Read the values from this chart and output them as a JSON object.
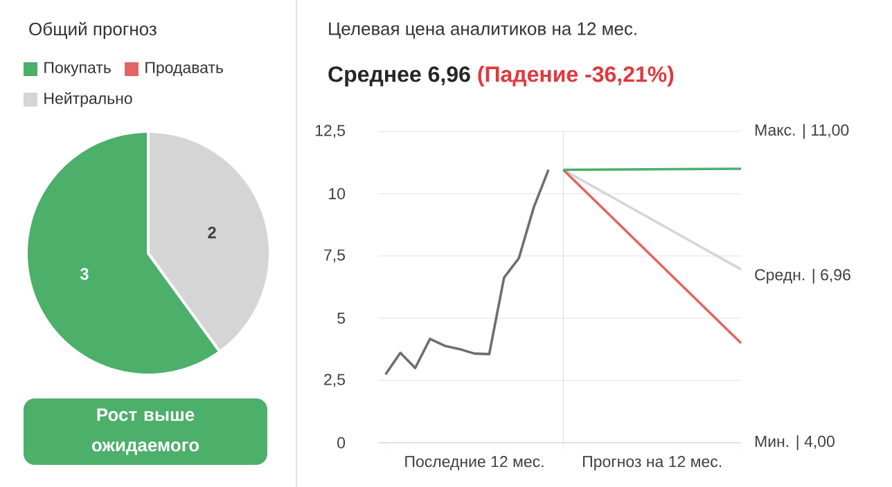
{
  "chart_data": [
    {
      "type": "pie",
      "title": "Общий прогноз",
      "categories": [
        "Покупать",
        "Продавать",
        "Нейтрально"
      ],
      "values": [
        3,
        0,
        2
      ],
      "colors": [
        "#4caf6a",
        "#e06666",
        "#d5d5d5"
      ],
      "value_labels": [
        "3",
        null,
        "2"
      ],
      "legend": "top",
      "annotations": [
        "Рост выше ожидаемого"
      ]
    },
    {
      "type": "line",
      "title": "Целевая цена аналитиков на 12 мес.",
      "subtitle": "Среднее 6,96",
      "annotations": [
        "(Падение -36,21%)",
        "Макс. | 11,00",
        "Средн. | 6,96",
        "Мин. | 4,00"
      ],
      "categories": [
        null,
        null,
        null,
        null,
        null,
        null,
        "Последние 12 мес.",
        null,
        null,
        null,
        null,
        null,
        null,
        null,
        null,
        null,
        null,
        null,
        "Прогноз на 12 мес.",
        null,
        null,
        null,
        null,
        null,
        null
      ],
      "ylim": [
        0,
        12.5
      ],
      "yticks": [
        0,
        {
          "value": 2.5,
          "label": "2,5"
        },
        5,
        {
          "value": 7.5,
          "label": "7,5"
        },
        10,
        {
          "value": 12.5,
          "label": "12,5"
        }
      ],
      "grid": "y",
      "series": [
        {
          "values": [
            2.74,
            3.61,
            3.0,
            4.17,
            3.89,
            3.76,
            3.58,
            3.56,
            6.63,
            7.41,
            9.44,
            10.96,
            null,
            null,
            null,
            null,
            null,
            null,
            null,
            null,
            null,
            null,
            null,
            null,
            null
          ],
          "color": "#6e6e6e"
        },
        {
          "values": [
            null,
            null,
            null,
            null,
            null,
            null,
            null,
            null,
            null,
            null,
            null,
            null,
            10.96,
            null,
            null,
            null,
            null,
            null,
            null,
            null,
            null,
            null,
            null,
            null,
            6.96
          ],
          "color": "#d5d5d5"
        },
        {
          "values": [
            null,
            null,
            null,
            null,
            null,
            null,
            null,
            null,
            null,
            null,
            null,
            null,
            10.96,
            null,
            null,
            null,
            null,
            null,
            null,
            null,
            null,
            null,
            null,
            null,
            4.0
          ],
          "color": "#e06666"
        },
        {
          "values": [
            null,
            null,
            null,
            null,
            null,
            null,
            null,
            null,
            null,
            null,
            null,
            null,
            10.96,
            null,
            null,
            null,
            null,
            null,
            null,
            null,
            null,
            null,
            null,
            null,
            11.0
          ],
          "color": "#4caf6a"
        }
      ]
    }
  ]
}
